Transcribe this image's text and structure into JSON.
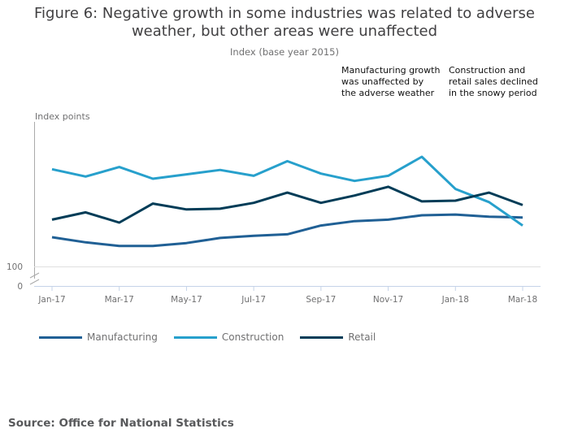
{
  "title_line1": "Figure 6: Negative growth in some industries was related to adverse",
  "title_line2": "weather, but other areas were unaffected",
  "subtitle": "Index (base year 2015)",
  "annotations": [
    {
      "lines": [
        "Manufacturing growth",
        "was unaffected by",
        "the adverse weather"
      ]
    },
    {
      "lines": [
        "Construction and",
        "retail sales declined",
        "in the snowy period"
      ]
    }
  ],
  "source": "Source: Office for National Statistics",
  "colors": {
    "Manufacturing": "#206095",
    "Construction": "#27a0cc",
    "Retail": "#003c57"
  },
  "chart_data": {
    "type": "line",
    "ylabel": "Index points",
    "y_ticks": [
      "100",
      "0"
    ],
    "axis_break": true,
    "x": [
      "Jan-17",
      "Feb-17",
      "Mar-17",
      "Apr-17",
      "May-17",
      "Jun-17",
      "Jul-17",
      "Aug-17",
      "Sep-17",
      "Oct-17",
      "Nov-17",
      "Dec-17",
      "Jan-18",
      "Feb-18",
      "Mar-18"
    ],
    "x_tick_labels": [
      "Jan-17",
      "Mar-17",
      "May-17",
      "Jul-17",
      "Sep-17",
      "Nov-17",
      "Jan-18",
      "Mar-18"
    ],
    "legend_position": "bottom-left",
    "grid": false,
    "series": [
      {
        "name": "Manufacturing",
        "values": [
          104.0,
          103.3,
          102.8,
          102.8,
          103.2,
          103.9,
          104.2,
          104.4,
          105.6,
          106.2,
          106.4,
          107.0,
          107.1,
          106.8,
          106.7
        ]
      },
      {
        "name": "Construction",
        "values": [
          113.3,
          112.3,
          113.6,
          112.0,
          112.6,
          113.2,
          112.4,
          114.4,
          112.7,
          111.7,
          112.4,
          115.0,
          110.6,
          108.8,
          105.6
        ]
      },
      {
        "name": "Retail",
        "values": [
          106.4,
          107.4,
          106.0,
          108.6,
          107.8,
          107.9,
          108.7,
          110.1,
          108.7,
          109.7,
          110.9,
          108.9,
          109.0,
          110.1,
          108.4
        ]
      }
    ]
  }
}
